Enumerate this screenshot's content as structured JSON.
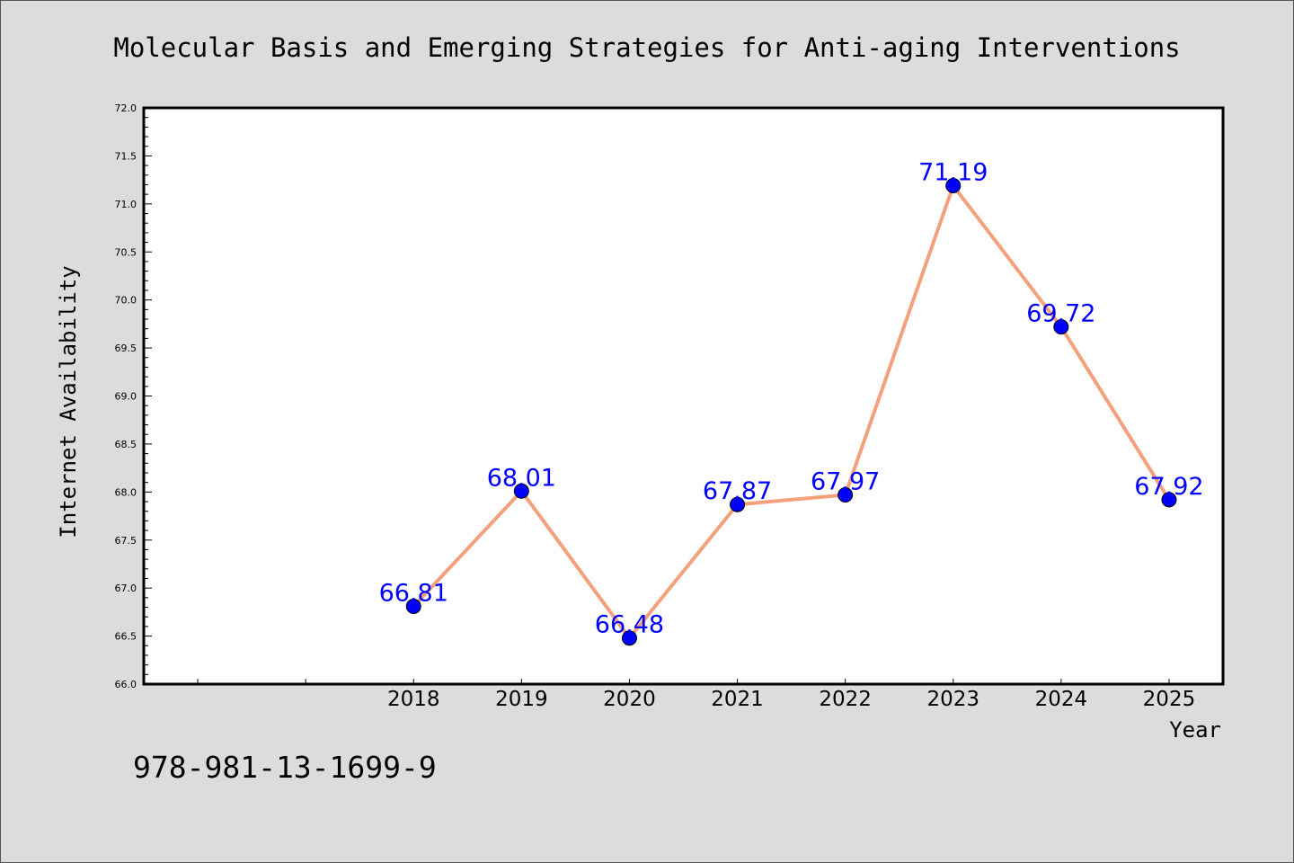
{
  "chart_data": {
    "type": "line",
    "title": "Molecular Basis and Emerging Strategies for Anti-aging Interventions",
    "xlabel": "Year",
    "ylabel": "Internet Availability",
    "categories": [
      "2018",
      "2019",
      "2020",
      "2021",
      "2022",
      "2023",
      "2024",
      "2025"
    ],
    "series": [
      {
        "values": [
          66.81,
          68.01,
          66.48,
          67.87,
          67.97,
          71.19,
          69.72,
          67.92
        ]
      }
    ],
    "data_labels": [
      "66.81",
      "68.01",
      "66.48",
      "67.87",
      "67.97",
      "71.19",
      "69.72",
      "67.92"
    ],
    "ylim": [
      66.0,
      72.0
    ],
    "yticks": [
      "66.0",
      "66.5",
      "67.0",
      "67.5",
      "68.0",
      "68.5",
      "69.0",
      "69.5",
      "70.0",
      "70.5",
      "71.0",
      "71.5",
      "72.0"
    ],
    "x_slots": 10,
    "first_year_slot": 2,
    "grid": false,
    "legend": "none",
    "line_color": "#f4a07c",
    "marker_color": "#0000ff",
    "label_color": "#0000ff"
  },
  "footer": {
    "isbn": "978-981-13-1699-9"
  }
}
